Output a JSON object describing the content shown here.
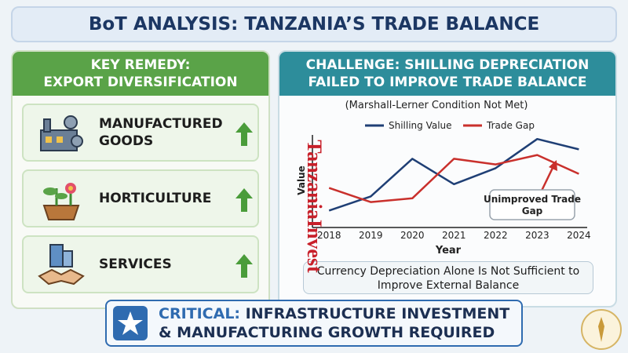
{
  "header": {
    "title": "BoT ANALYSIS: TANZANIA’S TRADE BALANCE"
  },
  "left_panel": {
    "title_lines": [
      "KEY REMEDY:",
      "EXPORT DIVERSIFICATION"
    ],
    "items": [
      "MANUFACTURED GOODS",
      "HORTICULTURE",
      "SERVICES"
    ]
  },
  "right_panel": {
    "title_lines": [
      "CHALLENGE: SHILLING DEPRECIATION",
      "FAILED TO IMPROVE TRADE BALANCE"
    ],
    "note": "Currency Depreciation Alone Is Not Sufficient to Improve External Balance"
  },
  "chart_data": {
    "type": "line",
    "subtitle": "(Marshall-Lerner Condition Not Met)",
    "x_label": "Year",
    "y_label": "Value",
    "x": [
      2018,
      2019,
      2020,
      2021,
      2022,
      2023,
      2024
    ],
    "xlim": [
      2017.6,
      2024.2
    ],
    "xticks": [
      2018,
      2019,
      2020,
      2021,
      2022,
      2023,
      2024
    ],
    "ylim": [
      0,
      100
    ],
    "series": [
      {
        "name": "Shilling Value",
        "color": "#1f3f75",
        "values": [
          18,
          33,
          73,
          46,
          63,
          94,
          83
        ]
      },
      {
        "name": "Trade Gap",
        "color": "#c9302c",
        "values": [
          42,
          27,
          31,
          73,
          67,
          77,
          57
        ]
      }
    ],
    "annotation": "Unimproved Trade Gap"
  },
  "watermark": "TanzaniaInvest",
  "footer": {
    "label": "CRITICAL:",
    "text": "INFRASTRUCTURE INVESTMENT & MANUFACTURING GROWTH REQUIRED"
  }
}
